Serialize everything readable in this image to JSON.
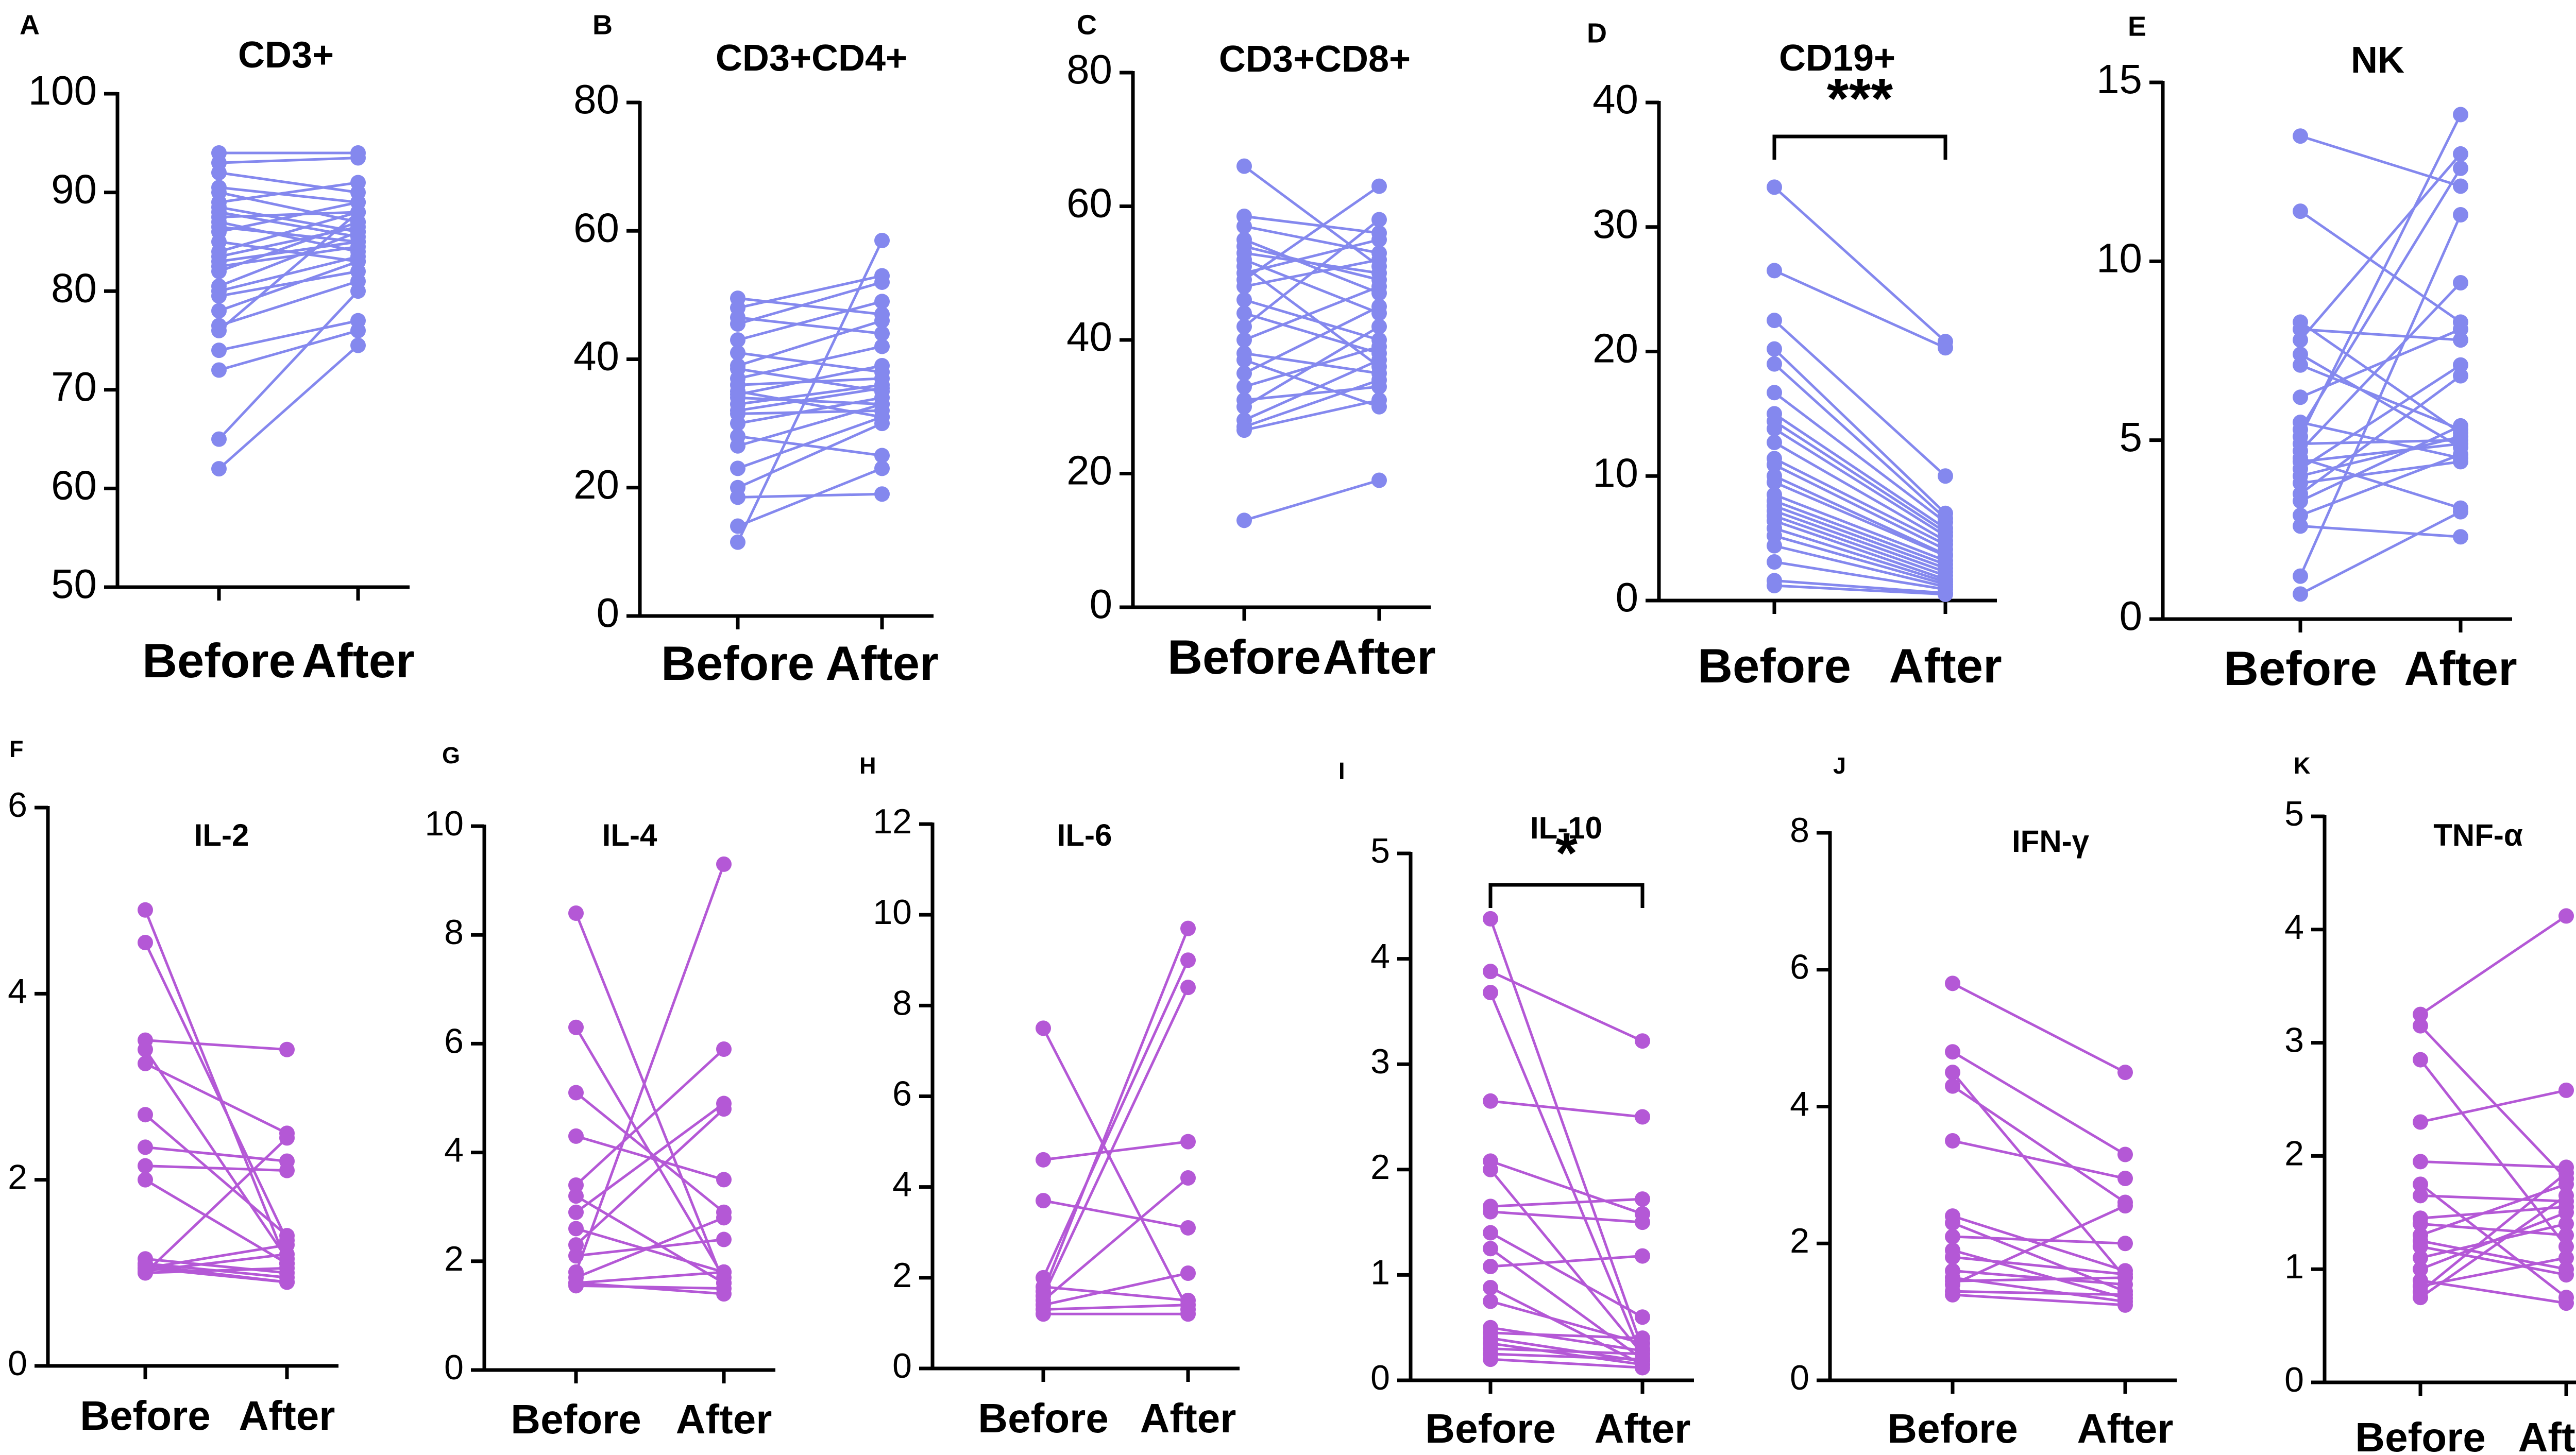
{
  "figure": {
    "colors": {
      "top_row": "#8488ee",
      "bottom_row": "#b458d6",
      "axis": "#000000"
    }
  },
  "chart_data": [
    {
      "letter": "A",
      "title": "CD3+",
      "type": "paired-dot",
      "categories": [
        "Before",
        "After"
      ],
      "ylim": [
        50,
        100
      ],
      "yticks": [
        50,
        60,
        70,
        80,
        90,
        100
      ],
      "color": "#8488ee",
      "significance": "",
      "pairs": [
        [
          94,
          94
        ],
        [
          93,
          93.5
        ],
        [
          92,
          90
        ],
        [
          90.5,
          89
        ],
        [
          90,
          87
        ],
        [
          89,
          91
        ],
        [
          88.5,
          86
        ],
        [
          88,
          85.5
        ],
        [
          87.5,
          88
        ],
        [
          87,
          84
        ],
        [
          86.5,
          85
        ],
        [
          86,
          89
        ],
        [
          85,
          83
        ],
        [
          84,
          88
        ],
        [
          83.5,
          86.5
        ],
        [
          83,
          85
        ],
        [
          82.5,
          84.5
        ],
        [
          82,
          87
        ],
        [
          80.5,
          86
        ],
        [
          80,
          83.5
        ],
        [
          79.5,
          82
        ],
        [
          78,
          83
        ],
        [
          76.5,
          81
        ],
        [
          76,
          88
        ],
        [
          74,
          77
        ],
        [
          72,
          76
        ],
        [
          65,
          80
        ],
        [
          62,
          74.5
        ]
      ]
    },
    {
      "letter": "B",
      "title": "CD3+CD4+",
      "type": "paired-dot",
      "categories": [
        "Before",
        "After"
      ],
      "ylim": [
        0,
        80
      ],
      "yticks": [
        0,
        20,
        40,
        60,
        80
      ],
      "color": "#8488ee",
      "significance": "",
      "pairs": [
        [
          49.5,
          47
        ],
        [
          48,
          53
        ],
        [
          46.5,
          44
        ],
        [
          45.5,
          52
        ],
        [
          43,
          49
        ],
        [
          41,
          38
        ],
        [
          39,
          46
        ],
        [
          38.5,
          35
        ],
        [
          37,
          42
        ],
        [
          36,
          37
        ],
        [
          35,
          31
        ],
        [
          34.5,
          39
        ],
        [
          34,
          33
        ],
        [
          33,
          36
        ],
        [
          32,
          35.5
        ],
        [
          31.5,
          32
        ],
        [
          30,
          34
        ],
        [
          28,
          25
        ],
        [
          26.5,
          33
        ],
        [
          23,
          31
        ],
        [
          20,
          30
        ],
        [
          18.5,
          19
        ],
        [
          14,
          23
        ],
        [
          11.5,
          58.5
        ]
      ]
    },
    {
      "letter": "C",
      "title": "CD3+CD8+",
      "type": "paired-dot",
      "categories": [
        "Before",
        "After"
      ],
      "ylim": [
        0,
        80
      ],
      "yticks": [
        0,
        20,
        40,
        60,
        80
      ],
      "color": "#8488ee",
      "significance": "",
      "pairs": [
        [
          66,
          51
        ],
        [
          58.5,
          56
        ],
        [
          57,
          53
        ],
        [
          55,
          47
        ],
        [
          54,
          49
        ],
        [
          53,
          50
        ],
        [
          52,
          44
        ],
        [
          51,
          36
        ],
        [
          50,
          55
        ],
        [
          49,
          63
        ],
        [
          48,
          52
        ],
        [
          46,
          40
        ],
        [
          44,
          38
        ],
        [
          42,
          58
        ],
        [
          40,
          48
        ],
        [
          38,
          35
        ],
        [
          37,
          30
        ],
        [
          35,
          45
        ],
        [
          33,
          39
        ],
        [
          31,
          33
        ],
        [
          30,
          42
        ],
        [
          28,
          37
        ],
        [
          27,
          34
        ],
        [
          26.5,
          31
        ],
        [
          13,
          19
        ]
      ]
    },
    {
      "letter": "D",
      "title": "CD19+",
      "type": "paired-dot",
      "categories": [
        "Before",
        "After"
      ],
      "ylim": [
        0,
        40
      ],
      "yticks": [
        0,
        10,
        20,
        30,
        40
      ],
      "color": "#8488ee",
      "significance": "***",
      "pairs": [
        [
          33.2,
          20.8
        ],
        [
          26.5,
          20.3
        ],
        [
          22.5,
          10
        ],
        [
          20.2,
          7
        ],
        [
          19,
          6.6
        ],
        [
          16.7,
          6.3
        ],
        [
          15,
          5.8
        ],
        [
          14.4,
          5.5
        ],
        [
          13.8,
          5.2
        ],
        [
          12.7,
          4.8
        ],
        [
          11.4,
          4.5
        ],
        [
          10.9,
          4.1
        ],
        [
          10,
          3.7
        ],
        [
          9.5,
          3.6
        ],
        [
          8.5,
          3.2
        ],
        [
          8,
          2.9
        ],
        [
          7.6,
          2.6
        ],
        [
          7.2,
          2.3
        ],
        [
          6.8,
          2
        ],
        [
          6.4,
          1.7
        ],
        [
          5.8,
          1.5
        ],
        [
          5.2,
          1.3
        ],
        [
          4.4,
          1.1
        ],
        [
          3.1,
          0.9
        ],
        [
          1.6,
          0.6
        ],
        [
          1.2,
          0.5
        ]
      ]
    },
    {
      "letter": "E",
      "title": "NK",
      "type": "paired-dot",
      "categories": [
        "Before",
        "After"
      ],
      "ylim": [
        0,
        15
      ],
      "yticks": [
        0,
        5,
        10,
        15
      ],
      "color": "#8488ee",
      "significance": "",
      "pairs": [
        [
          13.5,
          12.1
        ],
        [
          11.4,
          8.3
        ],
        [
          8.3,
          5.2
        ],
        [
          8.1,
          7.8
        ],
        [
          7.8,
          13
        ],
        [
          7.4,
          4.8
        ],
        [
          7.1,
          5.3
        ],
        [
          6.2,
          8.1
        ],
        [
          5.5,
          4.5
        ],
        [
          5.3,
          12.6
        ],
        [
          5.1,
          14.1
        ],
        [
          4.9,
          5
        ],
        [
          4.7,
          9.4
        ],
        [
          4.5,
          3.1
        ],
        [
          4.4,
          4.9
        ],
        [
          4.2,
          7.1
        ],
        [
          4,
          5.1
        ],
        [
          3.8,
          4.4
        ],
        [
          3.5,
          6.8
        ],
        [
          3.3,
          5.4
        ],
        [
          2.9,
          4.6
        ],
        [
          2.6,
          2.3
        ],
        [
          1.2,
          11.3
        ],
        [
          0.7,
          3
        ]
      ]
    },
    {
      "letter": "F",
      "title": "IL-2",
      "type": "paired-dot",
      "categories": [
        "Before",
        "After"
      ],
      "ylim": [
        0,
        6
      ],
      "yticks": [
        0,
        2,
        4,
        6
      ],
      "color": "#b458d6",
      "significance": "",
      "pairs": [
        [
          4.9,
          1.1
        ],
        [
          4.55,
          1.35
        ],
        [
          3.5,
          3.4
        ],
        [
          3.4,
          1.15
        ],
        [
          3.25,
          2.5
        ],
        [
          2.7,
          1.4
        ],
        [
          2.35,
          2.2
        ],
        [
          2.15,
          2.1
        ],
        [
          2,
          1.1
        ],
        [
          1.15,
          1
        ],
        [
          1.1,
          0.95
        ],
        [
          1.05,
          0.9
        ],
        [
          1.05,
          1.3
        ],
        [
          1.02,
          1.2
        ],
        [
          1,
          1.05
        ],
        [
          1,
          2.45
        ],
        [
          1.08,
          0.9
        ]
      ]
    },
    {
      "letter": "G",
      "title": "IL-4",
      "type": "paired-dot",
      "categories": [
        "Before",
        "After"
      ],
      "ylim": [
        0,
        10
      ],
      "yticks": [
        0,
        2,
        4,
        6,
        8,
        10
      ],
      "color": "#b458d6",
      "significance": "",
      "pairs": [
        [
          8.4,
          1.6
        ],
        [
          6.3,
          1.7
        ],
        [
          5.1,
          2.9
        ],
        [
          4.3,
          3.5
        ],
        [
          3.4,
          5.9
        ],
        [
          3.2,
          1.6
        ],
        [
          2.9,
          4.9
        ],
        [
          2.6,
          1.8
        ],
        [
          2.3,
          4.8
        ],
        [
          2.1,
          2.4
        ],
        [
          1.8,
          9.3
        ],
        [
          1.7,
          2.8
        ],
        [
          1.6,
          1.4
        ],
        [
          1.55,
          1.5
        ],
        [
          1.6,
          1.8
        ]
      ]
    },
    {
      "letter": "H",
      "title": "IL-6",
      "type": "paired-dot",
      "categories": [
        "Before",
        "After"
      ],
      "ylim": [
        0,
        12
      ],
      "yticks": [
        0,
        2,
        4,
        6,
        8,
        10,
        12
      ],
      "color": "#b458d6",
      "significance": "",
      "pairs": [
        [
          7.5,
          1.3
        ],
        [
          4.6,
          5
        ],
        [
          3.7,
          3.1
        ],
        [
          2,
          9
        ],
        [
          1.8,
          1.5
        ],
        [
          1.7,
          9.7
        ],
        [
          1.6,
          8.4
        ],
        [
          1.5,
          4.2
        ],
        [
          1.4,
          2.1
        ],
        [
          1.3,
          1.4
        ],
        [
          1.2,
          1.2
        ]
      ]
    },
    {
      "letter": "I",
      "title": "IL-10",
      "type": "paired-dot",
      "categories": [
        "Before",
        "After"
      ],
      "ylim": [
        0,
        5
      ],
      "yticks": [
        0,
        1,
        2,
        3,
        4,
        5
      ],
      "color": "#b458d6",
      "significance": "*",
      "pairs": [
        [
          4.38,
          0.3
        ],
        [
          3.88,
          3.22
        ],
        [
          3.68,
          0.22
        ],
        [
          2.65,
          2.5
        ],
        [
          2.08,
          1.58
        ],
        [
          2,
          0.25
        ],
        [
          1.65,
          1.72
        ],
        [
          1.6,
          1.5
        ],
        [
          1.4,
          0.6
        ],
        [
          1.25,
          0.2
        ],
        [
          1.08,
          1.18
        ],
        [
          0.88,
          0.15
        ],
        [
          0.75,
          0.35
        ],
        [
          0.5,
          0.28
        ],
        [
          0.45,
          0.4
        ],
        [
          0.4,
          0.18
        ],
        [
          0.35,
          0.15
        ],
        [
          0.3,
          0.25
        ],
        [
          0.25,
          0.2
        ],
        [
          0.2,
          0.12
        ]
      ]
    },
    {
      "letter": "J",
      "title": "IFN-γ",
      "type": "paired-dot",
      "categories": [
        "Before",
        "After"
      ],
      "ylim": [
        0,
        8
      ],
      "yticks": [
        0,
        2,
        4,
        6,
        8
      ],
      "color": "#b458d6",
      "significance": "",
      "pairs": [
        [
          5.8,
          4.5
        ],
        [
          4.8,
          3.3
        ],
        [
          4.5,
          1.5
        ],
        [
          4.3,
          2.6
        ],
        [
          3.5,
          2.95
        ],
        [
          2.4,
          1.6
        ],
        [
          2.3,
          1.3
        ],
        [
          2.1,
          2
        ],
        [
          1.9,
          1.2
        ],
        [
          1.8,
          1.55
        ],
        [
          1.6,
          1.4
        ],
        [
          1.5,
          1.15
        ],
        [
          1.45,
          1.5
        ],
        [
          1.4,
          2.55
        ],
        [
          1.3,
          1.25
        ],
        [
          1.25,
          1.1
        ]
      ]
    },
    {
      "letter": "K",
      "title": "TNF-α",
      "type": "paired-dot",
      "categories": [
        "Before",
        "After"
      ],
      "ylim": [
        0,
        5
      ],
      "yticks": [
        0,
        1,
        2,
        3,
        4,
        5
      ],
      "color": "#b458d6",
      "significance": "",
      "pairs": [
        [
          3.25,
          4.12
        ],
        [
          3.15,
          1.8
        ],
        [
          2.85,
          1.2
        ],
        [
          2.3,
          2.58
        ],
        [
          1.95,
          1.9
        ],
        [
          1.75,
          0.75
        ],
        [
          1.65,
          1.6
        ],
        [
          1.45,
          1.55
        ],
        [
          1.4,
          1.3
        ],
        [
          1.3,
          1.75
        ],
        [
          1.25,
          1
        ],
        [
          1.2,
          0.95
        ],
        [
          1.1,
          1.4
        ],
        [
          1,
          1.5
        ],
        [
          0.9,
          0.7
        ],
        [
          0.85,
          1.1
        ],
        [
          0.8,
          1.85
        ],
        [
          0.75,
          1.65
        ]
      ]
    }
  ]
}
